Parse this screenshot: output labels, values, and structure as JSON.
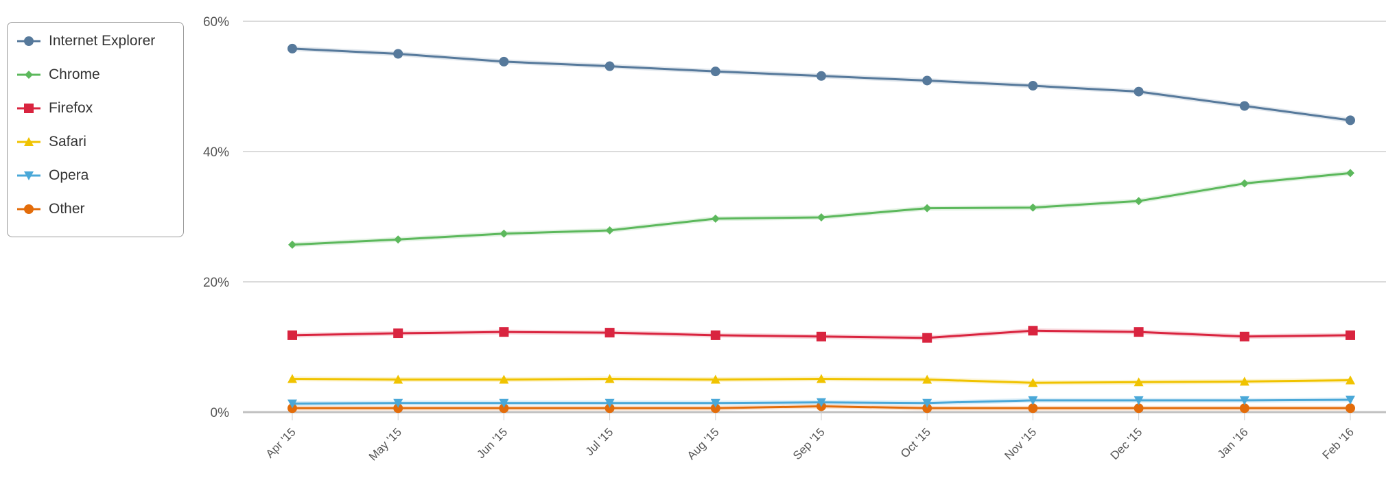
{
  "chart_data": {
    "type": "line",
    "title": "",
    "xlabel": "",
    "ylabel": "",
    "ylim": [
      0,
      60
    ],
    "y_ticks": [
      "0%",
      "20%",
      "40%",
      "60%"
    ],
    "y_tick_values": [
      0,
      20,
      40,
      60
    ],
    "grid": "horizontal",
    "legend_position": "top-left",
    "categories": [
      "Apr '15",
      "May '15",
      "Jun '15",
      "Jul '15",
      "Aug '15",
      "Sep '15",
      "Oct '15",
      "Nov '15",
      "Dec '15",
      "Jan '16",
      "Feb '16"
    ],
    "series": [
      {
        "name": "Internet Explorer",
        "color": "#56799b",
        "marker": "circle",
        "values": [
          55.8,
          55.0,
          53.8,
          53.1,
          52.3,
          51.6,
          50.9,
          50.1,
          49.2,
          47.0,
          44.8
        ]
      },
      {
        "name": "Chrome",
        "color": "#5cb85c",
        "marker": "diamond",
        "values": [
          25.7,
          26.5,
          27.4,
          27.9,
          29.7,
          29.9,
          31.3,
          31.4,
          32.4,
          35.1,
          36.7
        ]
      },
      {
        "name": "Firefox",
        "color": "#d9243f",
        "marker": "square",
        "values": [
          11.8,
          12.1,
          12.3,
          12.2,
          11.8,
          11.6,
          11.4,
          12.5,
          12.3,
          11.6,
          11.8
        ]
      },
      {
        "name": "Safari",
        "color": "#f0c300",
        "marker": "triangle",
        "values": [
          5.1,
          5.0,
          5.0,
          5.1,
          5.0,
          5.1,
          5.0,
          4.5,
          4.6,
          4.7,
          4.9
        ]
      },
      {
        "name": "Opera",
        "color": "#4aa8d8",
        "marker": "triangle-down",
        "values": [
          1.3,
          1.4,
          1.4,
          1.4,
          1.4,
          1.5,
          1.4,
          1.8,
          1.8,
          1.8,
          1.9
        ]
      },
      {
        "name": "Other",
        "color": "#e36c0a",
        "marker": "circle",
        "values": [
          0.6,
          0.6,
          0.6,
          0.6,
          0.6,
          0.9,
          0.6,
          0.6,
          0.6,
          0.6,
          0.6
        ]
      }
    ]
  }
}
